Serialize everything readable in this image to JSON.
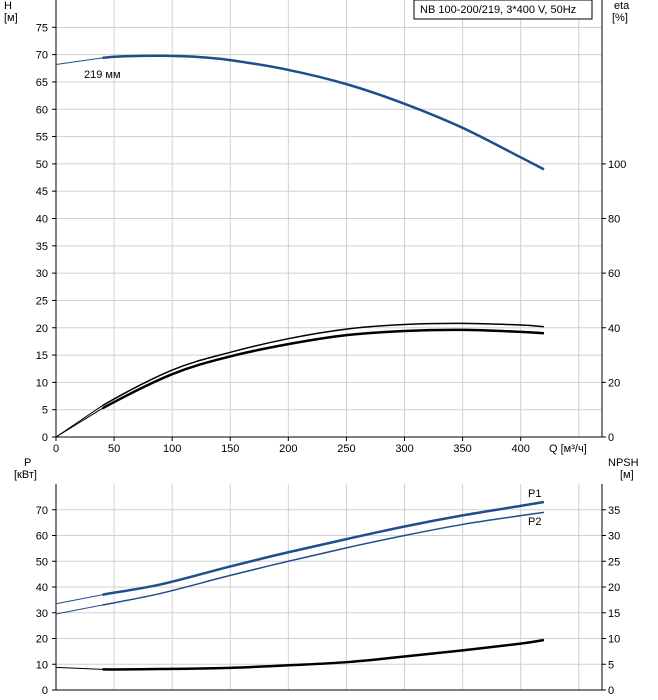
{
  "chart_data": [
    {
      "type": "line",
      "panel": "head-efficiency",
      "title": "NB 100-200/219, 3*400 V, 50Hz",
      "y_left_label": "H",
      "y_left_unit": "[м]",
      "y_right_label": "eta",
      "y_right_unit": "[%]",
      "x_label": "Q [м³/ч]",
      "xlim": [
        0,
        470
      ],
      "ylim_left": [
        0,
        80
      ],
      "ylim_right": [
        0,
        160
      ],
      "x_ticks": [
        "0",
        "50",
        "100",
        "150",
        "200",
        "250",
        "300",
        "350",
        "400"
      ],
      "y_left_ticks": [
        "0",
        "5",
        "10",
        "15",
        "20",
        "25",
        "30",
        "35",
        "40",
        "45",
        "50",
        "55",
        "60",
        "65",
        "70",
        "75"
      ],
      "y_right_ticks": [
        "0",
        "20",
        "40",
        "60",
        "80",
        "100"
      ],
      "grid": true,
      "series": [
        {
          "name": "219 мм",
          "axis": "left",
          "color": "#1f4e8c",
          "x": [
            0,
            40,
            60,
            90,
            120,
            150,
            200,
            250,
            300,
            350,
            400,
            420
          ],
          "y": [
            68.2,
            69.4,
            69.7,
            69.8,
            69.6,
            69.0,
            67.2,
            64.6,
            61.0,
            56.6,
            51.2,
            49.0
          ]
        },
        {
          "name": "",
          "axis": "right",
          "color": "#000000",
          "x": [
            0,
            40,
            100,
            150,
            200,
            250,
            300,
            350,
            400,
            420
          ],
          "y": [
            0,
            11.5,
            24.5,
            31.0,
            36.0,
            39.5,
            41.2,
            41.6,
            41.0,
            40.4
          ]
        },
        {
          "name": "",
          "axis": "right",
          "color": "#000000",
          "x": [
            0,
            40,
            100,
            150,
            200,
            250,
            300,
            350,
            400,
            420
          ],
          "y": [
            0,
            10.5,
            23.0,
            29.5,
            34.0,
            37.3,
            38.8,
            39.2,
            38.5,
            38.0
          ]
        }
      ]
    },
    {
      "type": "line",
      "panel": "power-npsh",
      "y_left_label": "P",
      "y_left_unit": "[кВт]",
      "y_right_label": "NPSH",
      "y_right_unit": "[м]",
      "xlim": [
        0,
        470
      ],
      "ylim_left": [
        0,
        80
      ],
      "ylim_right": [
        0,
        40
      ],
      "y_left_ticks": [
        "0",
        "10",
        "20",
        "30",
        "40",
        "50",
        "60",
        "70"
      ],
      "y_right_ticks": [
        "0",
        "5",
        "10",
        "15",
        "20",
        "25",
        "30",
        "35"
      ],
      "grid": true,
      "series": [
        {
          "name": "P1",
          "axis": "left",
          "color": "#1f4e8c",
          "x": [
            0,
            40,
            90,
            150,
            200,
            250,
            300,
            350,
            400,
            420
          ],
          "y": [
            33.5,
            37.0,
            41.0,
            48.0,
            53.5,
            58.6,
            63.5,
            67.8,
            71.5,
            73.0
          ]
        },
        {
          "name": "P2",
          "axis": "left",
          "color": "#1f4e8c",
          "x": [
            0,
            40,
            90,
            150,
            200,
            250,
            300,
            350,
            400,
            420
          ],
          "y": [
            29.5,
            33.0,
            37.5,
            44.5,
            50.0,
            55.2,
            60.0,
            64.3,
            67.7,
            69.0
          ]
        },
        {
          "name": "",
          "axis": "right",
          "color": "#000000",
          "x": [
            0,
            40,
            100,
            150,
            200,
            250,
            300,
            350,
            400,
            420
          ],
          "y": [
            4.4,
            4.0,
            4.1,
            4.3,
            4.8,
            5.4,
            6.5,
            7.7,
            9.0,
            9.7
          ]
        }
      ]
    }
  ]
}
